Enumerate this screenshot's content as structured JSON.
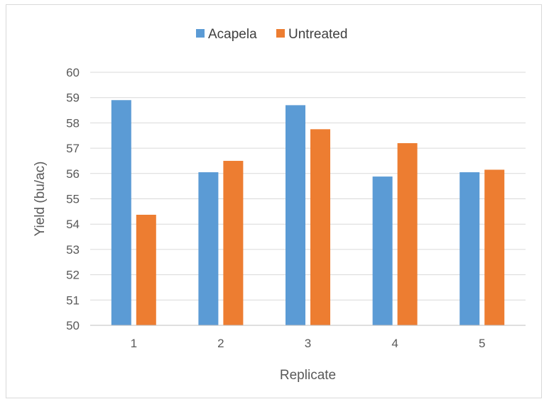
{
  "chart_data": {
    "type": "bar",
    "title": "",
    "xlabel": "Replicate",
    "ylabel": "Yield (bu/ac)",
    "categories": [
      "1",
      "2",
      "3",
      "4",
      "5"
    ],
    "series": [
      {
        "name": "Acapela",
        "color": "#5b9bd5",
        "values": [
          58.9,
          56.05,
          58.7,
          55.88,
          56.05
        ]
      },
      {
        "name": "Untreated",
        "color": "#ed7d31",
        "values": [
          54.37,
          56.5,
          57.75,
          57.2,
          56.15
        ]
      }
    ],
    "ylim": [
      50,
      60
    ],
    "yticks": [
      "50",
      "51",
      "52",
      "53",
      "54",
      "55",
      "56",
      "57",
      "58",
      "59",
      "60"
    ],
    "grid": true,
    "legend_position": "top"
  }
}
